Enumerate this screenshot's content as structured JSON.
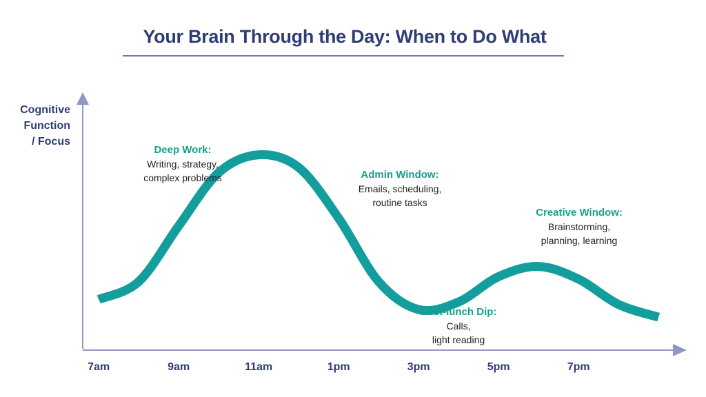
{
  "title": "Your Brain Through the Day: When to Do What",
  "y_axis_label": [
    "Cognitive",
    "Function",
    "/ Focus"
  ],
  "colors": {
    "title": "#2f3d75",
    "axis": "#8f97c4",
    "curve": "#139d9d",
    "annotation_heading": "#1a9e8c",
    "annotation_text": "#222222"
  },
  "annotations": [
    {
      "heading": "Deep Work:",
      "lines": [
        "Writing, strategy,",
        "complex problems"
      ]
    },
    {
      "heading": "Admin Window:",
      "lines": [
        "Emails, scheduling,",
        "routine tasks"
      ]
    },
    {
      "heading": "Creative Window:",
      "lines": [
        "Brainstorming,",
        "planning, learning"
      ]
    },
    {
      "heading": "Post-lunch Dip:",
      "lines": [
        "Calls,",
        "light reading"
      ]
    }
  ],
  "chart_data": {
    "type": "line",
    "title": "Your Brain Through the Day: When to Do What",
    "xlabel": "",
    "ylabel": "Cognitive Function / Focus",
    "x_tick_labels": [
      "7am",
      "9am",
      "11am",
      "1pm",
      "3pm",
      "5pm",
      "7pm"
    ],
    "x_ticks_hours": [
      7,
      9,
      11,
      13,
      15,
      17,
      19
    ],
    "xlim_hours": [
      6.6,
      21.6
    ],
    "ylim": [
      0,
      100
    ],
    "grid": false,
    "series": [
      {
        "x": [
          7,
          8,
          9,
          10,
          11,
          12,
          13,
          14,
          15,
          16,
          17,
          18,
          19,
          20,
          21
        ],
        "y": [
          20,
          27,
          49,
          70,
          77,
          72,
          52,
          27,
          16,
          19,
          29,
          33,
          28,
          18,
          13
        ]
      }
    ]
  }
}
